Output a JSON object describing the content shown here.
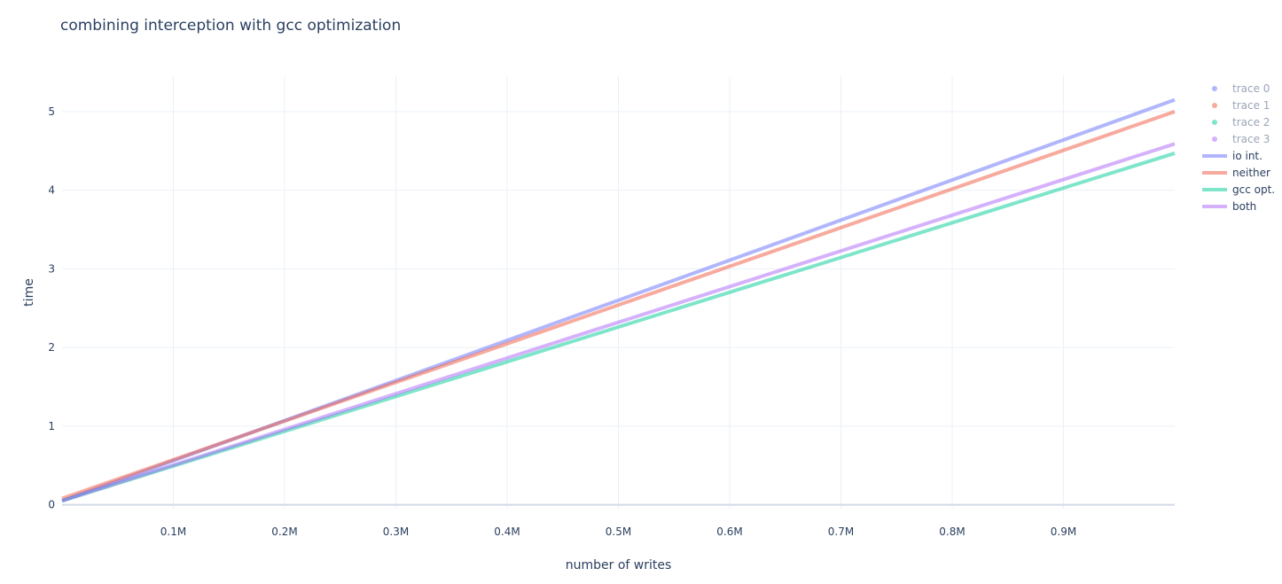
{
  "chart_data": {
    "type": "line",
    "title": "combining interception with gcc optimization",
    "xlabel": "number of writes",
    "ylabel": "time",
    "xlim": [
      0,
      1000000
    ],
    "ylim": [
      -0.05,
      5.45
    ],
    "x_ticks": [
      100000,
      200000,
      300000,
      400000,
      500000,
      600000,
      700000,
      800000,
      900000
    ],
    "x_tick_labels": [
      "0.1M",
      "0.2M",
      "0.3M",
      "0.4M",
      "0.5M",
      "0.6M",
      "0.7M",
      "0.8M",
      "0.9M"
    ],
    "y_ticks": [
      0,
      1,
      2,
      3,
      4,
      5
    ],
    "y_tick_labels": [
      "0",
      "1",
      "2",
      "3",
      "4",
      "5"
    ],
    "grid": true,
    "legend_position": "top-right",
    "series": [
      {
        "name": "trace 0",
        "mode": "markers",
        "color": "#636efa",
        "x": [],
        "y": []
      },
      {
        "name": "trace 1",
        "mode": "markers",
        "color": "#ef553b",
        "x": [],
        "y": []
      },
      {
        "name": "trace 2",
        "mode": "markers",
        "color": "#00cc96",
        "x": [],
        "y": []
      },
      {
        "name": "trace 3",
        "mode": "markers",
        "color": "#ab63fa",
        "x": [],
        "y": []
      },
      {
        "name": "io int.",
        "mode": "lines",
        "color": "#636efa",
        "x": [
          0,
          1000000
        ],
        "y": [
          0.05,
          5.15
        ]
      },
      {
        "name": "neither",
        "mode": "lines",
        "color": "#ef553b",
        "x": [
          0,
          1000000
        ],
        "y": [
          0.08,
          5.0
        ]
      },
      {
        "name": "gcc opt.",
        "mode": "lines",
        "color": "#00cc96",
        "x": [
          0,
          1000000
        ],
        "y": [
          0.05,
          4.47
        ]
      },
      {
        "name": "both",
        "mode": "lines",
        "color": "#ab63fa",
        "x": [
          0,
          1000000
        ],
        "y": [
          0.05,
          4.59
        ]
      }
    ]
  }
}
